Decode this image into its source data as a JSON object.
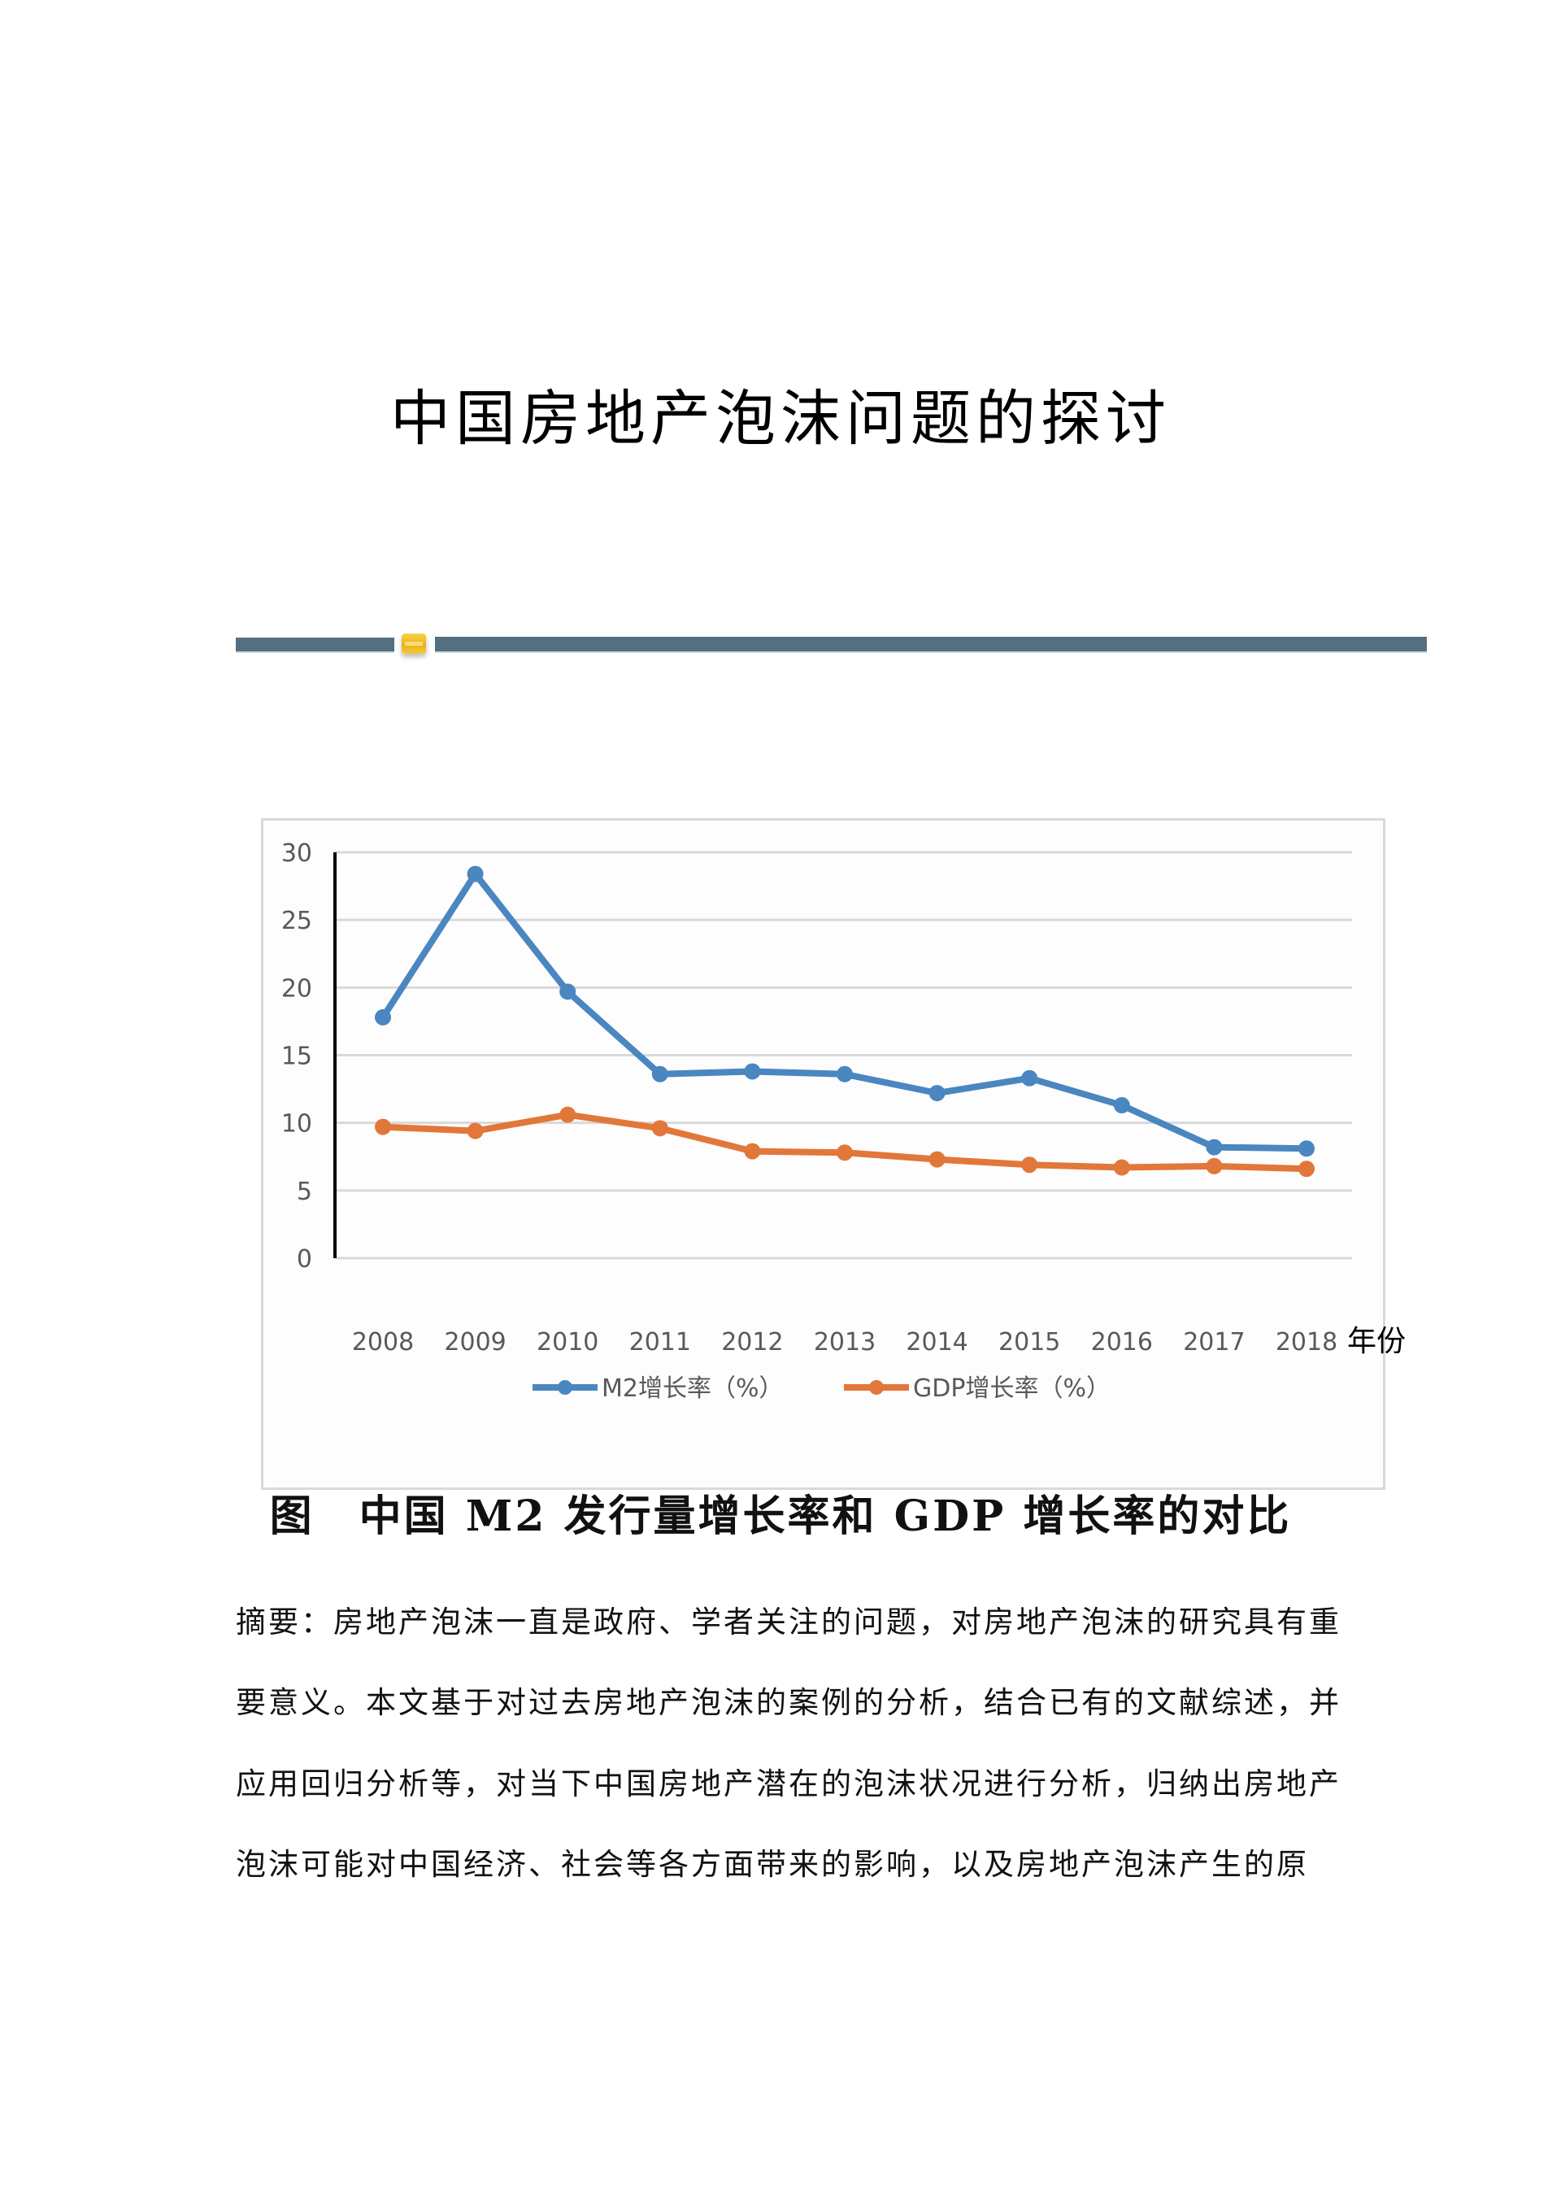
{
  "document": {
    "title": "中国房地产泡沫问题的探讨",
    "figure_caption": "图　中国 M2 发行量增长率和 GDP 增长率的对比",
    "abstract_lines": [
      "摘要：房地产泡沫一直是政府、学者关注的问题，对房地产泡沫的研究具有重",
      "要意义。本文基于对过去房地产泡沫的案例的分析，结合已有的文献综述，并",
      "应用回归分析等，对当下中国房地产潜在的泡沫状况进行分析，归纳出房地产",
      "泡沫可能对中国经济、社会等各方面带来的影响，以及房地产泡沫产生的原"
    ],
    "divider": {
      "bar_color": "#546f80",
      "gem_color": "#f0c030"
    }
  },
  "chart_data": {
    "type": "line",
    "title": "",
    "xlabel": "年份",
    "ylabel": "",
    "categories": [
      "2008",
      "2009",
      "2010",
      "2011",
      "2012",
      "2013",
      "2014",
      "2015",
      "2016",
      "2017",
      "2018"
    ],
    "series": [
      {
        "name": "M2增长率（%）",
        "color": "#4a86c0",
        "values": [
          17.8,
          28.4,
          19.7,
          13.6,
          13.8,
          13.6,
          12.2,
          13.3,
          11.3,
          8.2,
          8.1
        ]
      },
      {
        "name": "GDP增长率（%）",
        "color": "#e2773a",
        "values": [
          9.7,
          9.4,
          10.6,
          9.6,
          7.9,
          7.8,
          7.3,
          6.9,
          6.7,
          6.8,
          6.6
        ]
      }
    ],
    "yticks": [
      0,
      5,
      10,
      15,
      20,
      25,
      30
    ],
    "ylim": [
      0,
      30
    ],
    "grid": true,
    "legend_position": "bottom"
  }
}
